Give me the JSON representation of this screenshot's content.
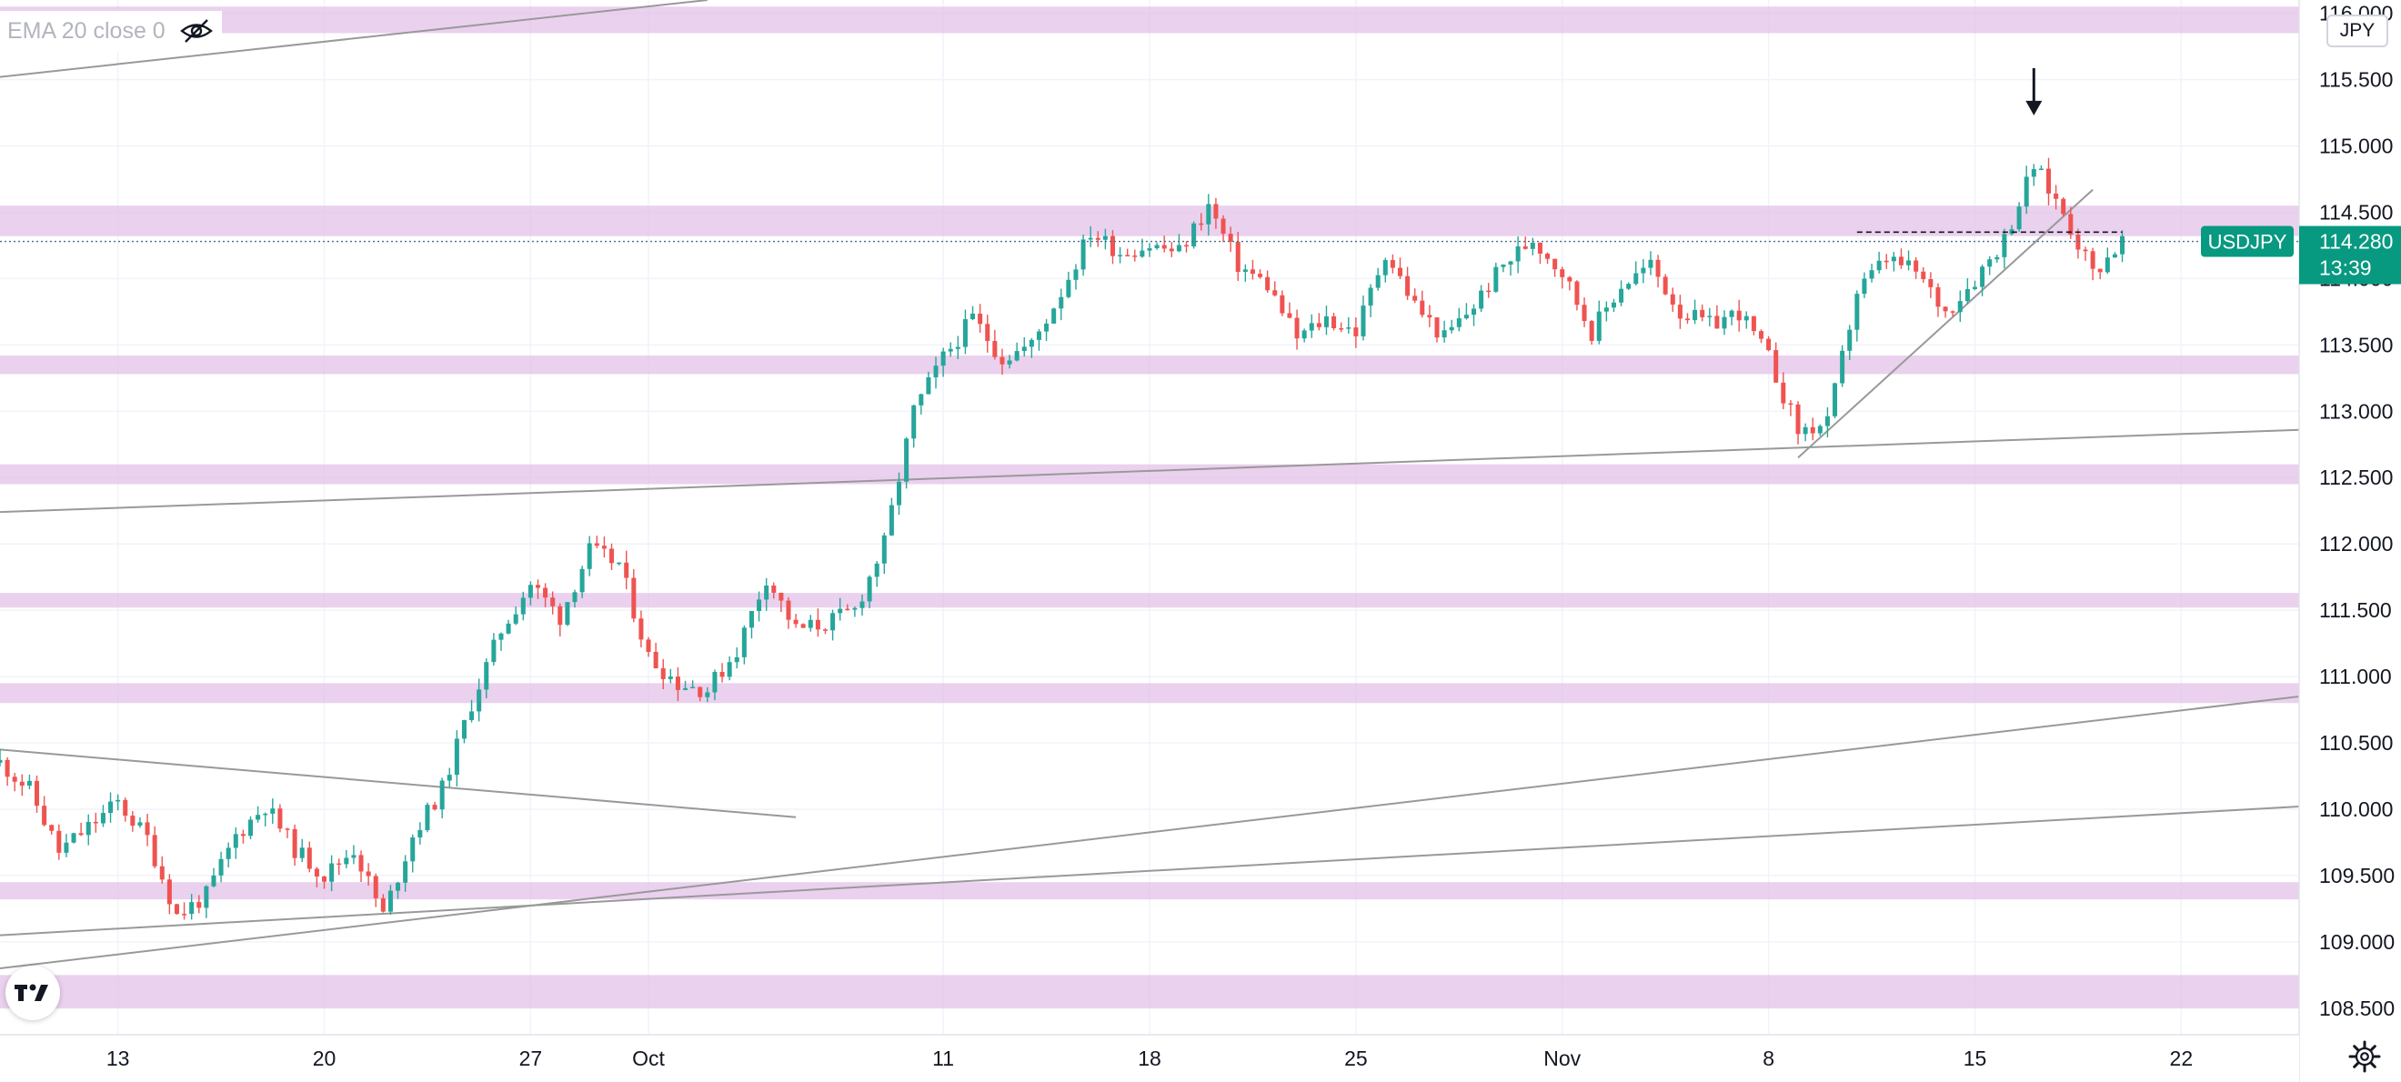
{
  "indicator": {
    "label": "EMA 20 close 0",
    "visibility_icon": "eye-slash-icon"
  },
  "currency_button": "JPY",
  "symbol_tag": {
    "symbol": "USDJPY",
    "price": "114.280",
    "countdown": "13:39"
  },
  "logo": {
    "text": "TV",
    "icon": "tradingview-logo-icon"
  },
  "settings_icon": "gear-icon",
  "colors": {
    "up": "#26a69a",
    "down": "#ef5350",
    "zone": "#e1bee7",
    "trendline": "#999999",
    "price_tag": "#089981",
    "text": "#131722"
  },
  "chart_data": {
    "type": "candlestick",
    "instrument": "USDJPY",
    "y_ticks": [
      "108.500",
      "109.000",
      "109.500",
      "110.000",
      "110.500",
      "111.000",
      "111.500",
      "112.000",
      "112.500",
      "113.000",
      "113.500",
      "114.000",
      "114.500",
      "115.000",
      "115.500",
      "116.000"
    ],
    "x_ticks": [
      {
        "label": "13",
        "date": "2021-09-13"
      },
      {
        "label": "20",
        "date": "2021-09-20"
      },
      {
        "label": "27",
        "date": "2021-09-27"
      },
      {
        "label": "Oct",
        "date": "2021-10-01"
      },
      {
        "label": "11",
        "date": "2021-10-11"
      },
      {
        "label": "18",
        "date": "2021-10-18"
      },
      {
        "label": "25",
        "date": "2021-10-25"
      },
      {
        "label": "Nov",
        "date": "2021-11-01"
      },
      {
        "label": "8",
        "date": "2021-11-08"
      },
      {
        "label": "15",
        "date": "2021-11-15"
      },
      {
        "label": "22",
        "date": "2021-11-22"
      }
    ],
    "ylim": [
      108.3,
      116.1
    ],
    "xlim": [
      "2021-09-09",
      "2021-11-26"
    ],
    "grid": true,
    "last_price": 114.28,
    "zones": [
      [
        115.85,
        116.05
      ],
      [
        114.32,
        114.55
      ],
      [
        113.28,
        113.42
      ],
      [
        112.45,
        112.6
      ],
      [
        111.52,
        111.63
      ],
      [
        110.8,
        110.95
      ],
      [
        109.32,
        109.45
      ],
      [
        108.5,
        108.75
      ]
    ],
    "lines": [
      {
        "from": [
          "2021-09-09",
          115.52
        ],
        "to": [
          "2021-10-03",
          116.1
        ]
      },
      {
        "from": [
          "2021-09-09",
          112.24
        ],
        "to": [
          "2021-11-26",
          112.86
        ]
      },
      {
        "from": [
          "2021-09-09",
          110.45
        ],
        "to": [
          "2021-10-06",
          109.94
        ]
      },
      {
        "from": [
          "2021-09-09",
          109.05
        ],
        "to": [
          "2021-11-26",
          110.02
        ]
      },
      {
        "from": [
          "2021-09-09",
          108.8
        ],
        "to": [
          "2021-11-26",
          110.85
        ]
      },
      {
        "from": [
          "2021-11-09",
          112.65
        ],
        "to": [
          "2021-11-19",
          114.67
        ]
      }
    ],
    "resistance_dashed": {
      "from": "2021-11-11",
      "to": "2021-11-20",
      "y": 114.35
    },
    "arrow_marker": {
      "date": "2021-11-17",
      "y": 115.23
    },
    "anchors": [
      [
        "2021-09-09",
        110.35
      ],
      [
        "2021-09-10",
        110.15
      ],
      [
        "2021-09-11",
        109.68
      ],
      [
        "2021-09-13",
        110.05
      ],
      [
        "2021-09-14",
        109.78
      ],
      [
        "2021-09-15",
        109.2
      ],
      [
        "2021-09-16",
        109.35
      ],
      [
        "2021-09-17",
        109.8
      ],
      [
        "2021-09-18",
        110.03
      ],
      [
        "2021-09-19",
        109.7
      ],
      [
        "2021-09-20",
        109.5
      ],
      [
        "2021-09-21",
        109.7
      ],
      [
        "2021-09-22",
        109.2
      ],
      [
        "2021-09-23",
        109.8
      ],
      [
        "2021-09-24",
        110.15
      ],
      [
        "2021-09-25",
        110.8
      ],
      [
        "2021-09-26",
        111.35
      ],
      [
        "2021-09-27",
        111.7
      ],
      [
        "2021-09-28",
        111.45
      ],
      [
        "2021-09-29",
        111.95
      ],
      [
        "2021-09-30",
        111.85
      ],
      [
        "2021-10-01",
        111.15
      ],
      [
        "2021-10-02",
        110.95
      ],
      [
        "2021-10-03",
        110.9
      ],
      [
        "2021-10-04",
        111.2
      ],
      [
        "2021-10-05",
        111.75
      ],
      [
        "2021-10-06",
        111.35
      ],
      [
        "2021-10-07",
        111.4
      ],
      [
        "2021-10-08",
        111.5
      ],
      [
        "2021-10-09",
        112.0
      ],
      [
        "2021-10-10",
        113.0
      ],
      [
        "2021-10-11",
        113.4
      ],
      [
        "2021-10-12",
        113.7
      ],
      [
        "2021-10-13",
        113.4
      ],
      [
        "2021-10-14",
        113.5
      ],
      [
        "2021-10-15",
        113.9
      ],
      [
        "2021-10-16",
        114.35
      ],
      [
        "2021-10-17",
        114.2
      ],
      [
        "2021-10-18",
        114.25
      ],
      [
        "2021-10-19",
        114.2
      ],
      [
        "2021-10-20",
        114.55
      ],
      [
        "2021-10-21",
        114.1
      ],
      [
        "2021-10-22",
        113.95
      ],
      [
        "2021-10-23",
        113.55
      ],
      [
        "2021-10-24",
        113.7
      ],
      [
        "2021-10-25",
        113.6
      ],
      [
        "2021-10-26",
        114.2
      ],
      [
        "2021-10-27",
        113.8
      ],
      [
        "2021-10-28",
        113.55
      ],
      [
        "2021-10-29",
        113.8
      ],
      [
        "2021-10-30",
        114.1
      ],
      [
        "2021-10-31",
        114.3
      ],
      [
        "2021-11-01",
        114.05
      ],
      [
        "2021-11-02",
        113.6
      ],
      [
        "2021-11-03",
        113.95
      ],
      [
        "2021-11-04",
        114.1
      ],
      [
        "2021-11-05",
        113.75
      ],
      [
        "2021-11-06",
        113.65
      ],
      [
        "2021-11-07",
        113.75
      ],
      [
        "2021-11-08",
        113.4
      ],
      [
        "2021-11-09",
        112.85
      ],
      [
        "2021-11-10",
        112.9
      ],
      [
        "2021-11-11",
        113.9
      ],
      [
        "2021-11-12",
        114.15
      ],
      [
        "2021-11-13",
        114.05
      ],
      [
        "2021-11-14",
        113.75
      ],
      [
        "2021-11-15",
        114.0
      ],
      [
        "2021-11-16",
        114.3
      ],
      [
        "2021-11-17",
        114.85
      ],
      [
        "2021-11-18",
        114.5
      ],
      [
        "2021-11-19",
        114.05
      ],
      [
        "2021-11-20",
        114.28
      ]
    ]
  }
}
